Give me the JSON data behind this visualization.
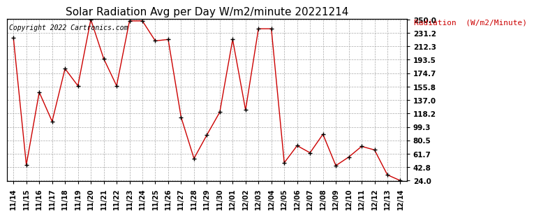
{
  "title": "Solar Radiation Avg per Day W/m2/minute 20221214",
  "copyright": "Copyright 2022 Cartronics.com",
  "legend_label": "Radiation  (W/m2/Minute)",
  "dates": [
    "11/14",
    "11/15",
    "11/16",
    "11/17",
    "11/18",
    "11/19",
    "11/20",
    "11/21",
    "11/22",
    "11/23",
    "11/24",
    "11/25",
    "11/26",
    "11/27",
    "11/28",
    "11/29",
    "11/30",
    "12/01",
    "12/02",
    "12/03",
    "12/04",
    "12/05",
    "12/06",
    "12/07",
    "12/08",
    "12/09",
    "12/10",
    "12/11",
    "12/12",
    "12/13",
    "12/14"
  ],
  "values": [
    224.0,
    46.0,
    148.0,
    107.0,
    181.0,
    157.0,
    250.0,
    195.0,
    157.0,
    248.0,
    248.0,
    220.0,
    222.0,
    113.0,
    55.0,
    88.0,
    120.0,
    222.0,
    123.0,
    237.0,
    237.0,
    49.0,
    73.0,
    63.0,
    89.0,
    45.0,
    57.0,
    72.0,
    67.0,
    32.0,
    24.0
  ],
  "yticks": [
    24.0,
    42.8,
    61.7,
    80.5,
    99.3,
    118.2,
    137.0,
    155.8,
    174.7,
    193.5,
    212.3,
    231.2,
    250.0
  ],
  "line_color": "#cc0000",
  "marker_color": "#000000",
  "title_fontsize": 11,
  "copyright_fontsize": 7,
  "legend_fontsize": 8,
  "legend_color": "#cc0000",
  "bg_color": "#ffffff",
  "grid_color": "#aaaaaa",
  "ylim_min": 24.0,
  "ylim_max": 250.0
}
